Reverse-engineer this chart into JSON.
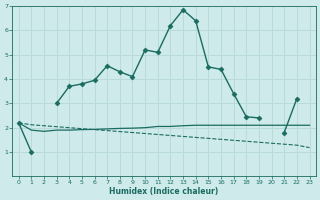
{
  "x": [
    0,
    1,
    2,
    3,
    4,
    5,
    6,
    7,
    8,
    9,
    10,
    11,
    12,
    13,
    14,
    15,
    16,
    17,
    18,
    19,
    20,
    21,
    22,
    23
  ],
  "line1_y": [
    2.2,
    1.0,
    null,
    3.0,
    3.7,
    3.8,
    3.95,
    4.55,
    4.3,
    4.1,
    5.2,
    5.1,
    6.2,
    6.85,
    6.4,
    4.5,
    4.4,
    3.4,
    2.45,
    2.4,
    null,
    1.8,
    3.2,
    null
  ],
  "line2_full": [
    2.2,
    2.12,
    2.08,
    2.04,
    2.0,
    1.96,
    1.92,
    1.88,
    1.84,
    1.8,
    1.76,
    1.72,
    1.68,
    1.64,
    1.6,
    1.56,
    1.52,
    1.48,
    1.44,
    1.4,
    1.36,
    1.32,
    1.28,
    1.18
  ],
  "line3_full": [
    2.2,
    1.9,
    1.85,
    1.9,
    1.9,
    1.92,
    1.93,
    1.95,
    1.97,
    1.98,
    2.0,
    2.05,
    2.05,
    2.08,
    2.1,
    2.1,
    2.1,
    2.1,
    2.1,
    2.1,
    2.1,
    2.1,
    2.1,
    2.1
  ],
  "bg_color": "#ceeaea",
  "grid_color": "#b8dada",
  "line_color": "#1a6b60",
  "ylim": [
    0,
    7
  ],
  "xlim": [
    -0.5,
    23.5
  ],
  "yticks": [
    1,
    2,
    3,
    4,
    5,
    6,
    7
  ],
  "xticks": [
    0,
    1,
    2,
    3,
    4,
    5,
    6,
    7,
    8,
    9,
    10,
    11,
    12,
    13,
    14,
    15,
    16,
    17,
    18,
    19,
    20,
    21,
    22,
    23
  ],
  "xlabel": "Humidex (Indice chaleur)",
  "marker": "D",
  "marker_size": 2.5,
  "line_width": 1.0
}
